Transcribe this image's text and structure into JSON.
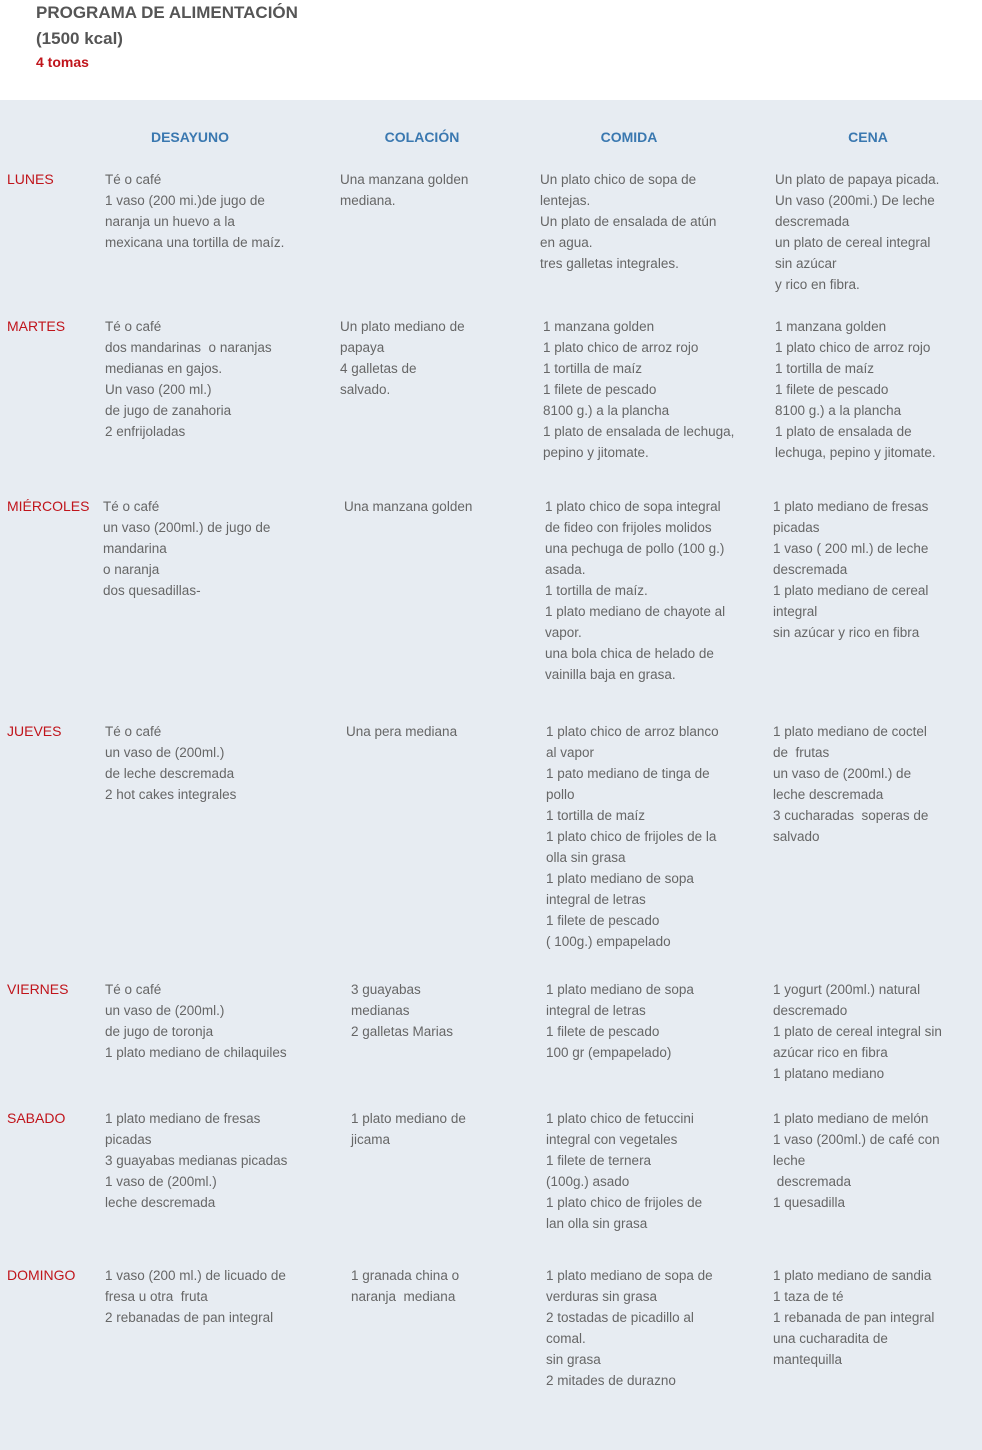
{
  "title_line1": "PROGRAMA DE ALIMENTACIÓN",
  "title_line2": "(1500 kcal)",
  "subtitle": "4 tomas",
  "colors": {
    "accent_red": "#c0141b",
    "header_blue": "#3a78b0",
    "panel": "#e7ecf2"
  },
  "headers": [
    "DESAYUNO",
    "COLACIÓN",
    "COMIDA",
    "CENA"
  ],
  "rows": [
    {
      "day": "LUNES",
      "cells": [
        [
          "Té o café",
          "1 vaso (200 mi.)de jugo de",
          "naranja un huevo a la",
          "mexicana una tortilla de maíz."
        ],
        [
          "Una manzana golden",
          "mediana."
        ],
        [
          "Un plato chico de sopa de",
          "lentejas.",
          "Un plato de ensalada de atún",
          "en agua.",
          "tres galletas integrales."
        ],
        [
          "Un plato de papaya picada.",
          "Un vaso (200mi.) De leche",
          "descremada",
          "un plato de cereal integral",
          "sin azúcar",
          "y rico en fibra."
        ]
      ]
    },
    {
      "day": "MARTES",
      "cells": [
        [
          "Té o café",
          "dos mandarinas  o naranjas",
          "medianas en gajos.",
          "Un vaso (200 ml.)",
          "de jugo de zanahoria",
          "2 enfrijoladas"
        ],
        [
          "Un plato mediano de",
          "papaya",
          "4 galletas de",
          "salvado."
        ],
        [
          "1 manzana golden",
          "1 plato chico de arroz rojo",
          "1 tortilla de maíz",
          "1 filete de pescado",
          "8100 g.) a la plancha",
          "1 plato de ensalada de lechuga,",
          "pepino y jitomate."
        ],
        [
          "1 manzana golden",
          "1 plato chico de arroz rojo",
          "1 tortilla de maíz",
          "1 filete de pescado",
          "8100 g.) a la plancha",
          "1 plato de ensalada de",
          "lechuga, pepino y jitomate."
        ]
      ]
    },
    {
      "day": "MIÉRCOLES",
      "cells": [
        [
          "Té o café",
          "un vaso (200ml.) de jugo de",
          "mandarina",
          "o naranja",
          "dos quesadillas-"
        ],
        [
          "Una manzana golden"
        ],
        [
          "1 plato chico de sopa integral",
          "de fideo con frijoles molidos",
          "una pechuga de pollo (100 g.)",
          "asada.",
          "1 tortilla de maíz.",
          "1 plato mediano de chayote al",
          "vapor.",
          "una bola chica de helado de",
          "vainilla baja en grasa."
        ],
        [
          "1 plato mediano de fresas",
          "picadas",
          "1 vaso ( 200 ml.) de leche",
          "descremada",
          "1 plato mediano de cereal",
          "integral",
          "sin azúcar y rico en fibra"
        ]
      ]
    },
    {
      "day": "JUEVES",
      "cells": [
        [
          "Té o café",
          "un vaso de (200ml.)",
          "de leche descremada",
          "2 hot cakes integrales"
        ],
        [
          "Una pera mediana"
        ],
        [
          "1 plato chico de arroz blanco",
          "al vapor",
          "1 pato mediano de tinga de",
          "pollo",
          "1 tortilla de maíz",
          "1 plato chico de frijoles de la",
          "olla sin grasa",
          "1 plato mediano de sopa",
          "integral de letras",
          "1 filete de pescado",
          "( 100g.) empapelado"
        ],
        [
          "1 plato mediano de coctel",
          "de  frutas",
          "un vaso de (200ml.) de",
          "leche descremada",
          "3 cucharadas  soperas de",
          "salvado"
        ]
      ]
    },
    {
      "day": "VIERNES",
      "cells": [
        [
          "Té o café",
          "un vaso de (200ml.)",
          "de jugo de toronja",
          "1 plato mediano de chilaquiles"
        ],
        [
          "3 guayabas",
          "medianas",
          "2 galletas Marias"
        ],
        [
          "1 plato mediano de sopa",
          "integral de letras",
          "1 filete de pescado",
          "100 gr (empapelado)"
        ],
        [
          "1 yogurt (200ml.) natural",
          "descremado",
          "1 plato de cereal integral sin",
          "azúcar rico en fibra",
          "1 platano mediano"
        ]
      ]
    },
    {
      "day": "SABADO",
      "cells": [
        [
          "1 plato mediano de fresas",
          "picadas",
          "3 guayabas medianas picadas",
          "1 vaso de (200ml.)",
          "leche descremada"
        ],
        [
          "1 plato mediano de",
          "jicama"
        ],
        [
          "1 plato chico de fetuccini",
          "integral con vegetales",
          "1 filete de ternera",
          "(100g.) asado",
          "1 plato chico de frijoles de",
          "lan olla sin grasa"
        ],
        [
          "1 plato mediano de melón",
          "1 vaso (200ml.) de café con",
          "leche",
          " descremada",
          "1 quesadilla"
        ]
      ]
    },
    {
      "day": "DOMINGO",
      "cells": [
        [
          "1 vaso (200 ml.) de licuado de",
          "fresa u otra  fruta",
          "2 rebanadas de pan integral"
        ],
        [
          "1 granada china o",
          "naranja  mediana"
        ],
        [
          "1 plato mediano de sopa de",
          "verduras sin grasa",
          "2 tostadas de picadillo al",
          "comal.",
          "sin grasa",
          "2 mitades de durazno"
        ],
        [
          "1 plato mediano de sandia",
          "1 taza de té",
          "1 rebanada de pan integral",
          "una cucharadita de",
          "mantequilla"
        ]
      ]
    }
  ]
}
